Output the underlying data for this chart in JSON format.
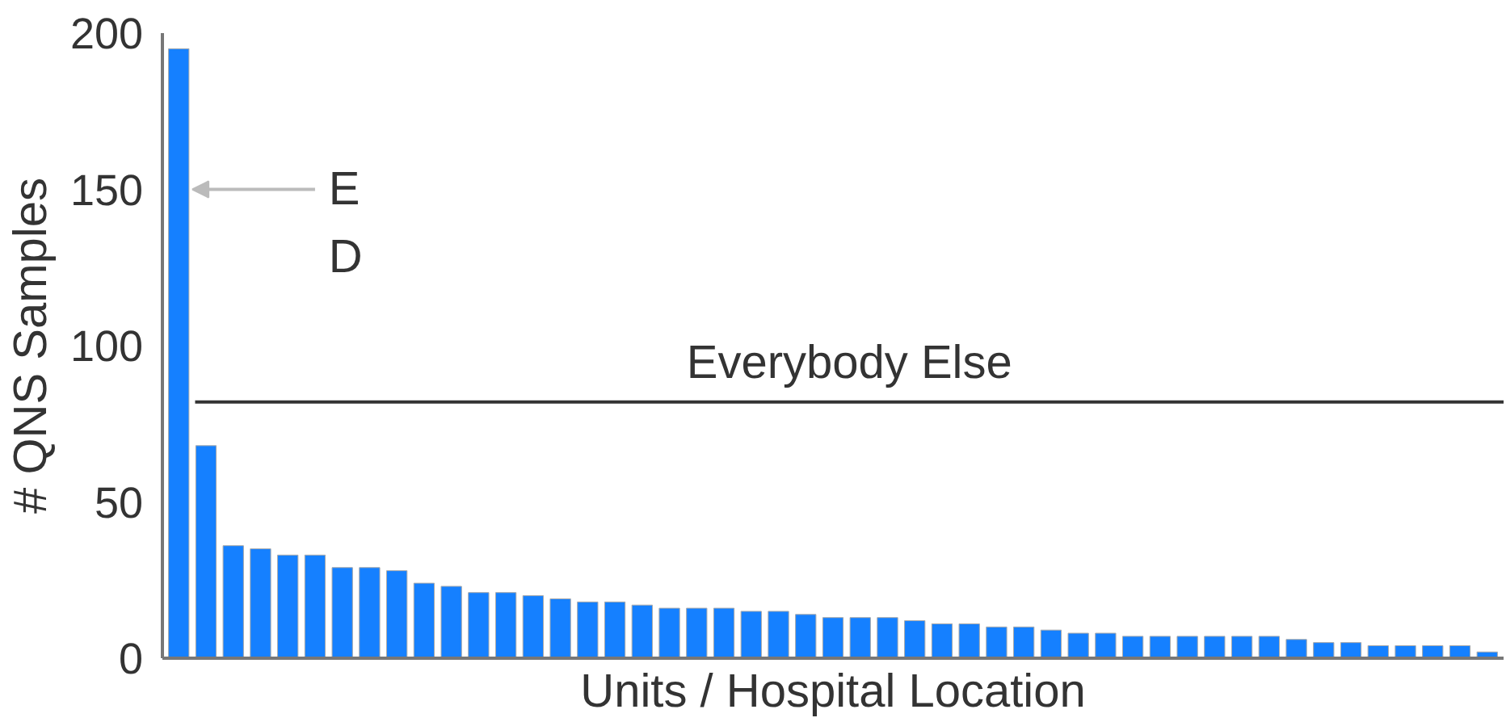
{
  "chart_data": {
    "type": "bar",
    "xlabel": "Units / Hospital Location",
    "ylabel": "# QNS Samples",
    "categories": [
      null,
      null,
      null,
      null,
      null,
      null,
      null,
      null,
      null,
      null,
      null,
      null,
      null,
      null,
      null,
      null,
      null,
      null,
      null,
      null,
      null,
      null,
      null,
      null,
      null,
      null,
      null,
      null,
      null,
      null,
      null,
      null,
      null,
      null,
      null,
      null,
      null,
      null,
      null,
      null,
      null,
      null,
      null,
      null,
      null,
      null,
      null,
      null,
      null
    ],
    "values": [
      195,
      68,
      36,
      35,
      33,
      33,
      29,
      29,
      28,
      24,
      23,
      21,
      21,
      20,
      19,
      18,
      18,
      17,
      16,
      16,
      16,
      15,
      15,
      14,
      13,
      13,
      13,
      12,
      11,
      11,
      10,
      10,
      9,
      8,
      8,
      7,
      7,
      7,
      7,
      7,
      7,
      6,
      5,
      5,
      4,
      4,
      4,
      4,
      2
    ],
    "color": "#1580ff",
    "ylim": [
      0,
      200
    ],
    "yticks": [
      0,
      50,
      100,
      150,
      200
    ],
    "grid": false,
    "ref_lines": [
      {
        "axis": "y",
        "value": 82,
        "label": "Everybody Else",
        "color": "#333333"
      }
    ],
    "annotations": [
      "E\nD"
    ]
  }
}
